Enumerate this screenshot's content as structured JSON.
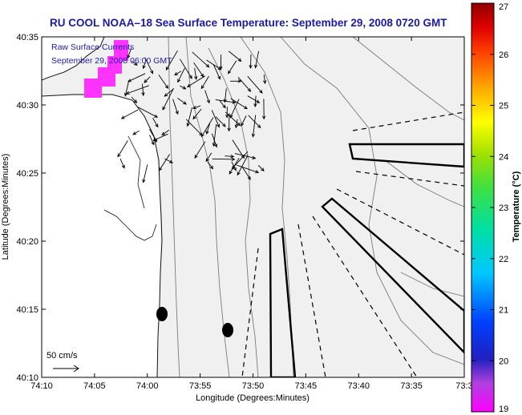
{
  "chart_data": {
    "type": "map",
    "title": "RU COOL  NOAA–18  Sea Surface Temperature:  September 29, 2008 0720 GMT",
    "xlabel": "Longitude (Degrees:Minutes)",
    "ylabel": "Latitude (Degrees:Minutes)",
    "x_ticks": [
      "74:10",
      "74:05",
      "74:00",
      "73:55",
      "73:50",
      "73:45",
      "73:40",
      "73:35",
      "73:3"
    ],
    "y_ticks": [
      "40:35",
      "40:30",
      "40:25",
      "40:20",
      "40:15",
      "40:10"
    ],
    "xlim_minutes_west": [
      70,
      30
    ],
    "ylim_minutes_north": [
      10,
      35
    ],
    "annotation_lines": [
      "Raw Surface Currents",
      "September 29, 2008 06:00 GMT"
    ],
    "scale_label": "50 cm/s",
    "colorbar": {
      "label": "Temperature (°C)",
      "ticks": [
        "27",
        "26",
        "25",
        "24",
        "23",
        "22",
        "21",
        "20",
        "19"
      ],
      "range": [
        19,
        27
      ]
    },
    "ocean_color": "#f0f0f0",
    "land_color": "#ffffff"
  }
}
